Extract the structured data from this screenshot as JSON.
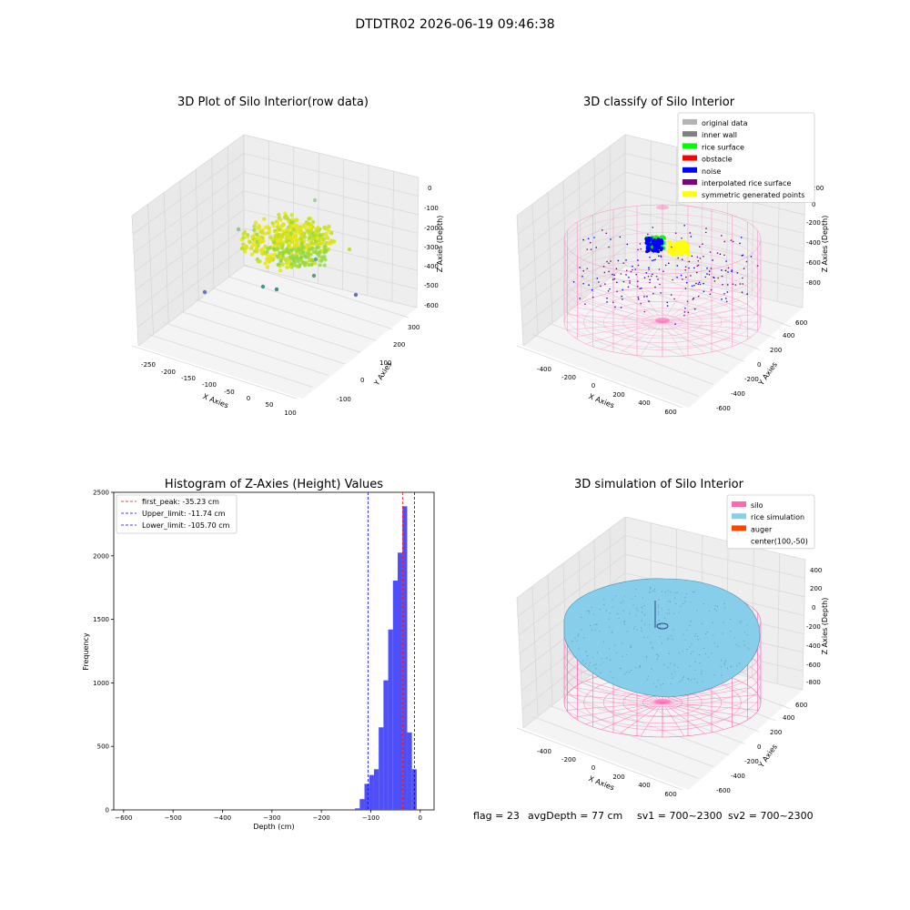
{
  "suptitle": "DTDTR02 2026-06-19 09:46:38",
  "footer": {
    "flag": "flag = 23",
    "avg_depth": "avgDepth = 77 cm",
    "sv1": "sv1 = 700~2300",
    "sv2": "sv2 = 700~2300"
  },
  "colors": {
    "histogram_bar": "#4f4ff7",
    "original_data": "#b3b3b3",
    "inner_wall": "#808080",
    "rice_surface": "#00ff00",
    "obstacle": "#ff0000",
    "noise": "#0000ff",
    "interpolated_rice_surface": "#800080",
    "symmetric_generated_points": "#ffff00",
    "silo": "#ff69b4",
    "rice_simulation": "#87ceeb",
    "auger": "#ff4500"
  },
  "chart_data": [
    {
      "type": "scatter",
      "projection": "3d",
      "title": "3D Plot of Silo Interior(row data)",
      "xlabel": "X Axies",
      "ylabel": "Y Axies",
      "zlabel": "Z Axies (Depth)",
      "x_ticks": [
        "-250",
        "-200",
        "-150",
        "-100",
        "-50",
        "0",
        "50",
        "100"
      ],
      "y_ticks": [
        "-100",
        "0",
        "100",
        "200",
        "300"
      ],
      "z_ticks": [
        "0",
        "-100",
        "-200",
        "-300",
        "-400",
        "-500",
        "-600"
      ],
      "xlim": [
        -270,
        130
      ],
      "ylim": [
        -150,
        330
      ],
      "zlim": [
        -630,
        20
      ],
      "colormap": "viridis (colored by depth)",
      "note": "dense yellow-green cluster of points around depth -200 to -300, a few outliers near -500"
    },
    {
      "type": "scatter",
      "projection": "3d",
      "title": "3D classify of Silo Interior",
      "xlabel": "X Axies",
      "ylabel": "Y Axies",
      "zlabel": "Z Axies (Depth)",
      "x_ticks": [
        "-400",
        "-200",
        "0",
        "200",
        "400",
        "600"
      ],
      "y_ticks": [
        "-600",
        "-400",
        "-200",
        "0",
        "200",
        "400",
        "600"
      ],
      "z_ticks": [
        "200",
        "0",
        "-200",
        "-400",
        "-600",
        "-800"
      ],
      "legend_position": "upper right",
      "legend": [
        {
          "label": "original data",
          "color_key": "original_data"
        },
        {
          "label": "inner wall",
          "color_key": "inner_wall"
        },
        {
          "label": "rice surface",
          "color_key": "rice_surface"
        },
        {
          "label": "obstacle",
          "color_key": "obstacle"
        },
        {
          "label": "noise",
          "color_key": "noise"
        },
        {
          "label": "interpolated rice surface",
          "color_key": "interpolated_rice_surface"
        },
        {
          "label": "symmetric generated points",
          "color_key": "symmetric_generated_points"
        }
      ]
    },
    {
      "type": "bar",
      "title": "Histogram of Z-Axies (Height) Values",
      "xlabel": "Depth (cm)",
      "ylabel": "Frequency",
      "xlim": [
        -620,
        28
      ],
      "ylim": [
        0,
        2500
      ],
      "x_ticks": [
        -600,
        -500,
        -400,
        -300,
        -200,
        -100,
        0
      ],
      "y_ticks": [
        0,
        500,
        1000,
        1500,
        2000,
        2500
      ],
      "bin_width": 9.6,
      "bins": [
        {
          "x0": -132,
          "count": 12
        },
        {
          "x0": -122.4,
          "count": 85
        },
        {
          "x0": -112.8,
          "count": 205
        },
        {
          "x0": -103.2,
          "count": 275
        },
        {
          "x0": -93.6,
          "count": 320
        },
        {
          "x0": -84.0,
          "count": 650
        },
        {
          "x0": -74.4,
          "count": 1020
        },
        {
          "x0": -64.8,
          "count": 1420
        },
        {
          "x0": -55.2,
          "count": 1805
        },
        {
          "x0": -45.6,
          "count": 2025
        },
        {
          "x0": -36.0,
          "count": 2390
        },
        {
          "x0": -26.4,
          "count": 610
        },
        {
          "x0": -16.8,
          "count": 320
        },
        {
          "x0": -7.2,
          "count": 0
        }
      ],
      "lines": [
        {
          "label": "first_peak: -35.23 cm",
          "x": -35.23,
          "color": "#ff0000"
        },
        {
          "label": "Upper_limit: -11.74 cm",
          "x": -11.74,
          "color": "#0000ff"
        },
        {
          "label": "Lower_limit: -105.70 cm",
          "x": -105.7,
          "color": "#0000ff"
        }
      ],
      "legend_position": "upper left"
    },
    {
      "type": "surface",
      "projection": "3d",
      "title": "3D simulation of Silo Interior",
      "xlabel": "X Axies",
      "ylabel": "Y Axies",
      "zlabel": "Z Axies (Depth)",
      "x_ticks": [
        "-400",
        "-200",
        "0",
        "200",
        "400",
        "600"
      ],
      "y_ticks": [
        "-600",
        "-400",
        "-200",
        "0",
        "200",
        "400",
        "600"
      ],
      "z_ticks": [
        "400",
        "200",
        "0",
        "-200",
        "-400",
        "-600",
        "-800"
      ],
      "legend_position": "upper right",
      "legend": [
        {
          "label": "silo",
          "color_key": "silo"
        },
        {
          "label": "rice simulation",
          "color_key": "rice_simulation"
        },
        {
          "label": "auger",
          "color_key": "auger"
        },
        {
          "label": "center(100,-50)",
          "color_key": ""
        }
      ]
    }
  ]
}
